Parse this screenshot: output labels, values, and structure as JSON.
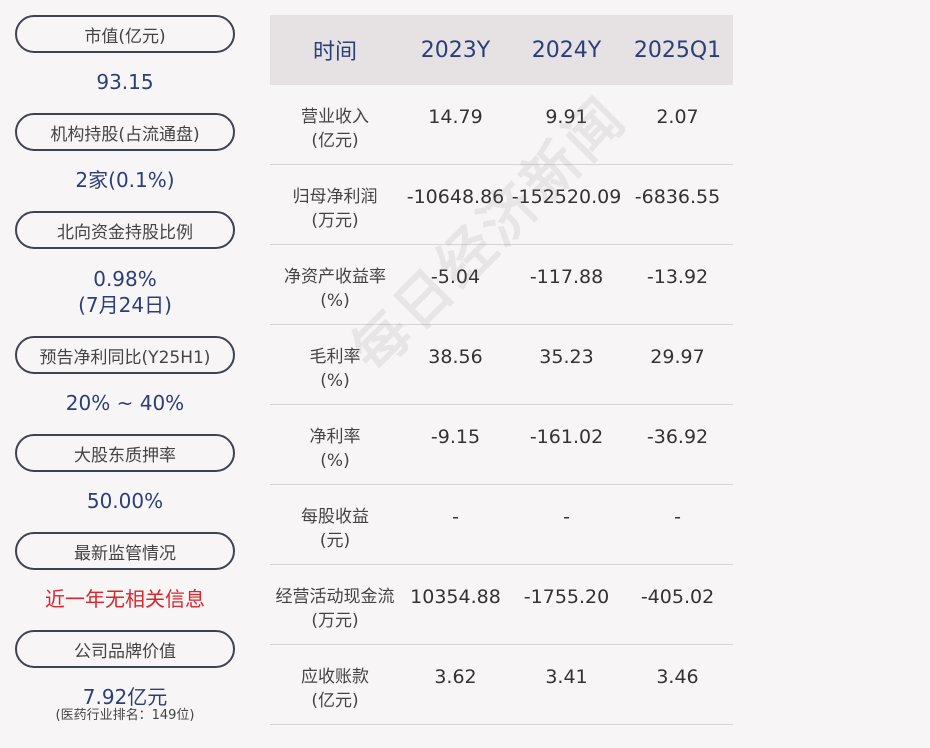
{
  "metrics": [
    {
      "label": "市值(亿元)",
      "value": "93.15"
    },
    {
      "label": "机构持股(占流通盘)",
      "value": "2家(0.1%)"
    },
    {
      "label": "北向资金持股比例",
      "value": "0.98%",
      "value2": "(7月24日)"
    },
    {
      "label": "预告净利同比(Y25H1)",
      "value": "20% ~ 40%"
    },
    {
      "label": "大股东质押率",
      "value": "50.00%"
    },
    {
      "label": "最新监管情况",
      "value": "近一年无相关信息"
    },
    {
      "label": "公司品牌价值",
      "value": "7.92亿元",
      "sub": "(医药行业排名：149位)"
    }
  ],
  "table": {
    "headers": [
      "时间",
      "2023Y",
      "2024Y",
      "2025Q1"
    ],
    "rows": [
      {
        "label1": "营业收入",
        "label2": "(亿元)",
        "values": [
          "14.79",
          "9.91",
          "2.07"
        ]
      },
      {
        "label1": "归母净利润",
        "label2": "(万元)",
        "values": [
          "-10648.86",
          "-152520.09",
          "-6836.55"
        ]
      },
      {
        "label1": "净资产收益率",
        "label2": "(%)",
        "values": [
          "-5.04",
          "-117.88",
          "-13.92"
        ]
      },
      {
        "label1": "毛利率",
        "label2": "(%)",
        "values": [
          "38.56",
          "35.23",
          "29.97"
        ]
      },
      {
        "label1": "净利率",
        "label2": "(%)",
        "values": [
          "-9.15",
          "-161.02",
          "-36.92"
        ]
      },
      {
        "label1": "每股收益",
        "label2": "(元)",
        "values": [
          "-",
          "-",
          "-"
        ]
      },
      {
        "label1": "经营活动现金流",
        "label2": "(万元)",
        "values": [
          "10354.88",
          "-1755.20",
          "-405.02"
        ]
      },
      {
        "label1": "应收账款",
        "label2": "(亿元)",
        "values": [
          "3.62",
          "3.41",
          "3.46"
        ]
      }
    ]
  },
  "watermark": "每日经济新闻",
  "colors": {
    "value_blue": "#2a3f7a",
    "alert_red": "#d8262c",
    "header_bg": "#e6e2e3"
  }
}
